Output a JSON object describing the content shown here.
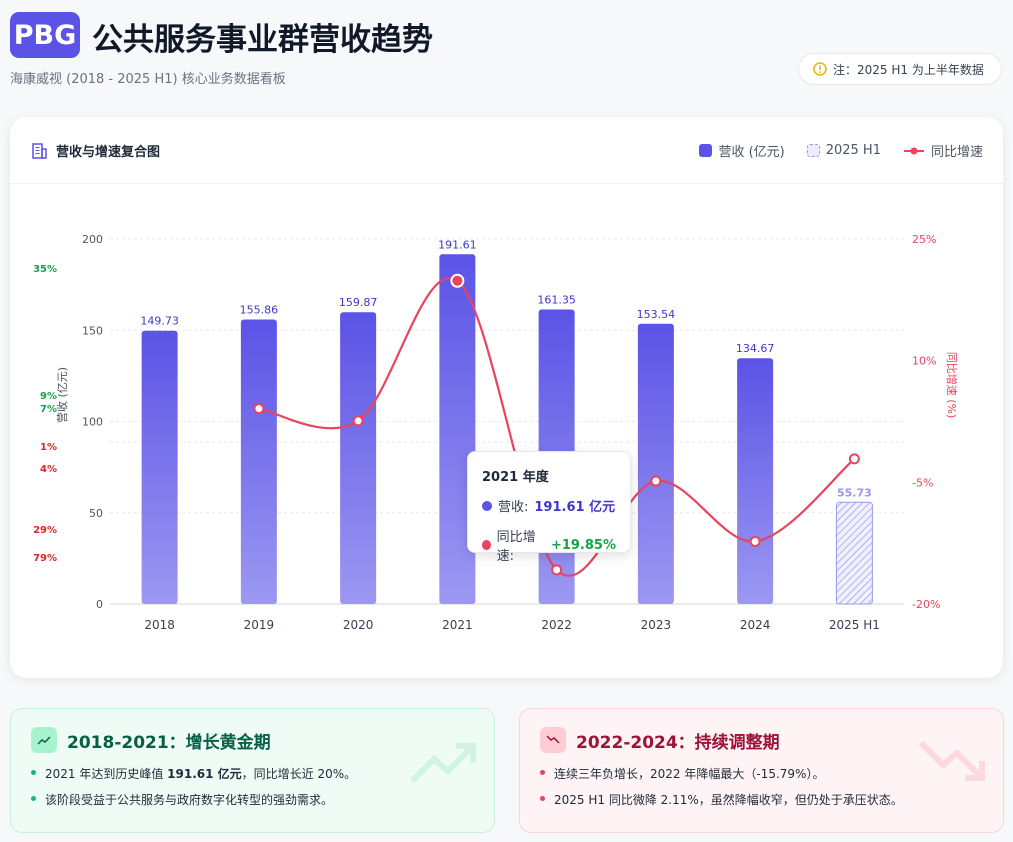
{
  "header": {
    "badge": "PBG",
    "title": "公共服务事业群营收趋势",
    "subtitle": "海康威视 (2018 - 2025 H1) 核心业务数据看板",
    "note": "注：2025 H1 为上半年数据"
  },
  "chart_card": {
    "title": "营收与增速复合图"
  },
  "chart_data": {
    "type": "bar_line",
    "categories": [
      "2018",
      "2019",
      "2020",
      "2021",
      "2022",
      "2023",
      "2024",
      "2025 H1"
    ],
    "series": [
      {
        "name": "营收 (亿元)",
        "type": "bar",
        "color": "#5b53e6",
        "values": [
          149.73,
          155.86,
          159.87,
          191.61,
          161.35,
          153.54,
          134.67,
          55.73
        ]
      },
      {
        "name": "同比增速",
        "type": "line",
        "axis": "y2",
        "color": "#e8435f",
        "values": [
          null,
          4.09,
          2.57,
          19.85,
          -15.79,
          -4.84,
          -12.29,
          -2.11
        ]
      }
    ],
    "hatched_categories": [
      "2025 H1"
    ],
    "hatched_color": "#9a96f0",
    "ylabel": "营收 (亿元)",
    "y2label": "同比增速 (%)",
    "ylim": [
      0,
      200
    ],
    "yticks": [
      0,
      50,
      100,
      150,
      200
    ],
    "y2lim": [
      -20,
      25
    ],
    "y2ticks": [
      {
        "value": -20,
        "label": "-20%"
      },
      {
        "value": -5,
        "label": "-5%"
      },
      {
        "value": 10,
        "label": "10%"
      },
      {
        "value": 25,
        "label": "25%"
      }
    ],
    "grid": true,
    "tooltip": {
      "title": "2021 年度",
      "items": [
        {
          "label": "营收:",
          "value": "191.61 亿元",
          "color": "#5b53e6"
        },
        {
          "label": "同比增速:",
          "value": "+19.85%",
          "color": "#e8435f"
        }
      ]
    },
    "clipped_labels": [
      {
        "text": "35%",
        "color": "#16a34a"
      },
      {
        "text": "9%",
        "color": "#16a34a"
      },
      {
        "text": "7%",
        "color": "#16a34a"
      },
      {
        "text": "1%",
        "color": "#dc2626"
      },
      {
        "text": "4%",
        "color": "#dc2626"
      },
      {
        "text": "29%",
        "color": "#dc2626"
      },
      {
        "text": "79%",
        "color": "#dc2626"
      }
    ]
  },
  "cards": [
    {
      "title": "2018-2021：增长黄金期",
      "bullets": [
        {
          "before": "2021 年达到历史峰值 ",
          "strong": "191.61 亿元",
          "after": "，同比增长近 20%。"
        },
        {
          "before": "该阶段受益于公共服务与政府数字化转型的强劲需求。"
        }
      ]
    },
    {
      "title": "2022-2024：持续调整期",
      "bullets": [
        {
          "before": "连续三年负增长，2022 年降幅最大（-15.79%）。"
        },
        {
          "before": "2025 H1 同比微降 2.11%，虽然降幅收窄，但仍处于承压状态。"
        }
      ]
    }
  ]
}
